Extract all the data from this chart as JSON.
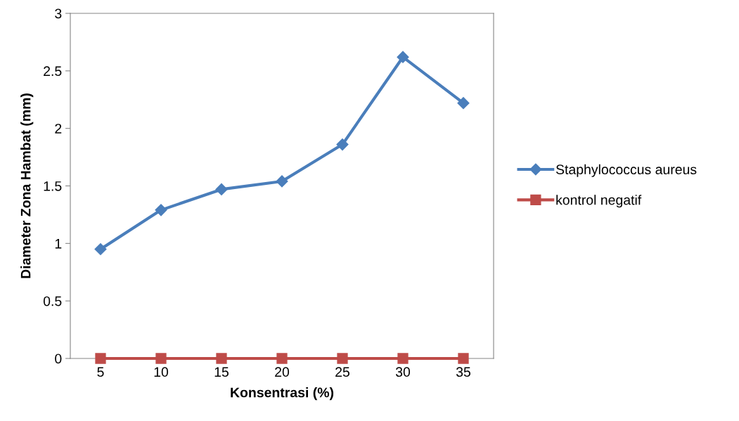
{
  "chart_data": {
    "type": "line",
    "xlabel": "Konsentrasi (%)",
    "ylabel": "Diameter Zona Hambat (mm)",
    "categories": [
      "5",
      "10",
      "15",
      "20",
      "25",
      "30",
      "35"
    ],
    "series": [
      {
        "name": "Staphylococcus aureus",
        "color": "#4a7ebb",
        "marker": "diamond",
        "values": [
          0.95,
          1.29,
          1.47,
          1.54,
          1.86,
          2.62,
          2.22
        ]
      },
      {
        "name": "kontrol negatif",
        "color": "#be4b48",
        "marker": "square",
        "values": [
          0,
          0,
          0,
          0,
          0,
          0,
          0
        ]
      }
    ],
    "ylim": [
      0,
      3
    ],
    "yticks": [
      0,
      0.5,
      1,
      1.5,
      2,
      2.5,
      3
    ],
    "grid": false,
    "legend": "right",
    "line_style": "solid"
  }
}
